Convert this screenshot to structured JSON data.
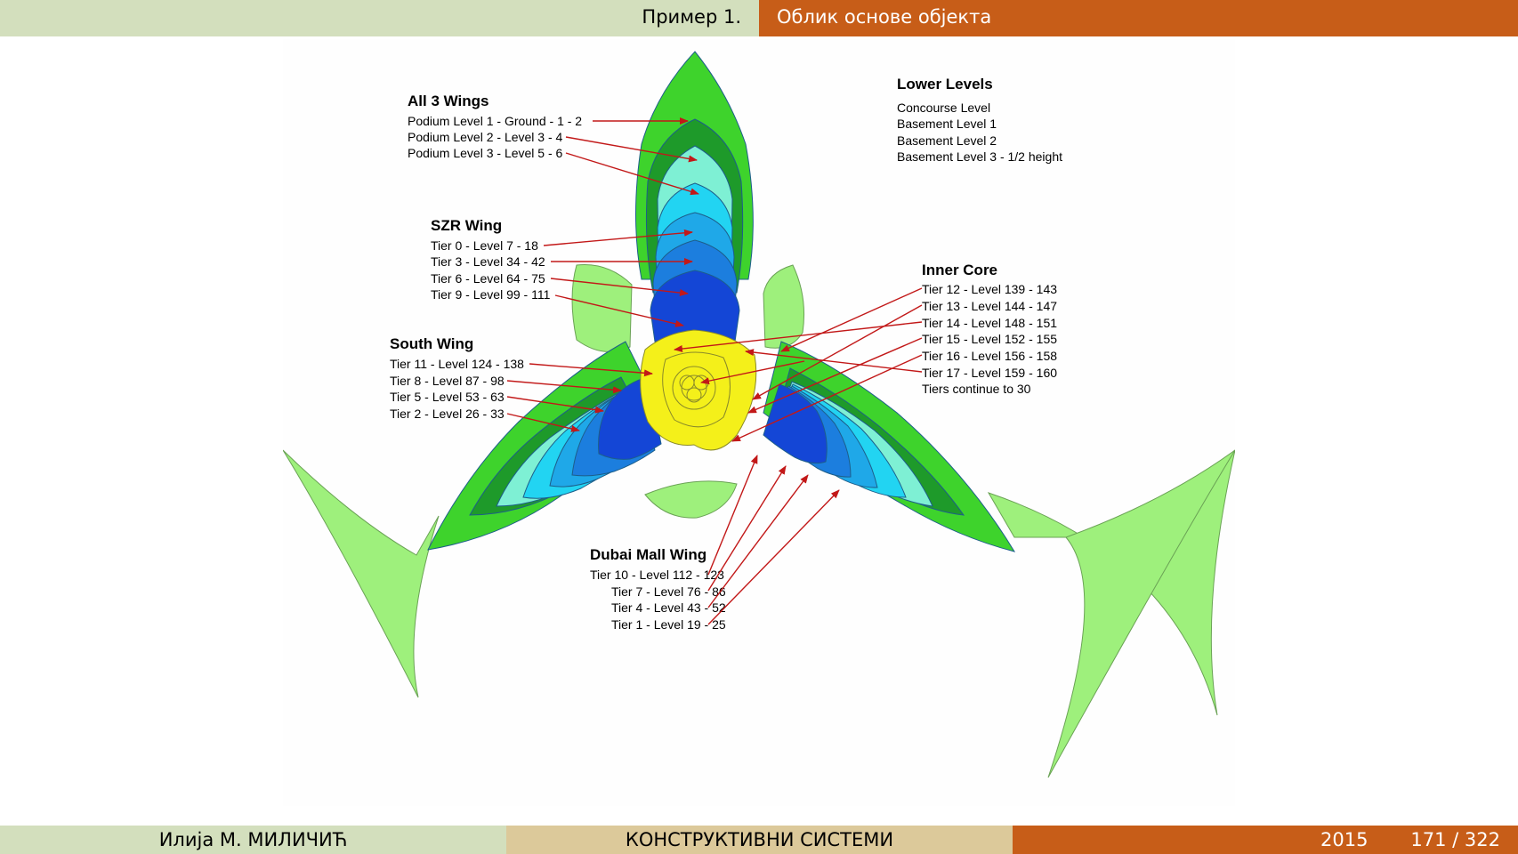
{
  "header": {
    "section": "Пример 1.",
    "subsection": "Облик основе објекта"
  },
  "footer": {
    "author": "Илија М. МИЛИЧИЋ",
    "course": "КОНСТРУКТИВНИ СИСТЕМИ",
    "year": "2015",
    "page": "171 / 322"
  },
  "diagram": {
    "all_wings": {
      "title": "All 3 Wings",
      "items": [
        "Podium Level 1 - Ground - 1 - 2",
        "Podium Level 2 - Level 3 - 4",
        "Podium Level 3 - Level 5 - 6"
      ]
    },
    "szr_wing": {
      "title": "SZR Wing",
      "items": [
        "Tier 0 - Level 7 - 18",
        "Tier 3 - Level 34 - 42",
        "Tier 6 - Level 64 - 75",
        "Tier 9 - Level 99 - 111"
      ]
    },
    "south_wing": {
      "title": "South Wing",
      "items": [
        "Tier 11 - Level 124 - 138",
        "Tier 8 - Level 87 - 98",
        "Tier 5 - Level 53 - 63",
        "Tier 2 - Level 26 - 33"
      ]
    },
    "dubai_mall_wing": {
      "title": "Dubai Mall Wing",
      "items": [
        "Tier 10 - Level 112 - 123",
        "Tier 7 - Level 76 - 86",
        "Tier 4 - Level 43 - 52",
        "Tier 1 - Level 19 - 25"
      ]
    },
    "lower_levels": {
      "title": "Lower Levels",
      "items": [
        "Concourse Level",
        "Basement Level 1",
        "Basement Level 2",
        "Basement Level 3 - 1/2 height"
      ]
    },
    "inner_core": {
      "title": "Inner Core",
      "items": [
        "Tier 12 - Level 139 - 143",
        "Tier 13 - Level 144 - 147",
        "Tier 14 - Level 148 - 151",
        "Tier 15 - Level 152 - 155",
        "Tier 16 - Level 156 - 158",
        "Tier 17 - Level 159 - 160",
        "Tiers continue to 30"
      ]
    }
  },
  "colors": {
    "top_left_bar": "#d3dfbd",
    "accent_orange": "#c75d18",
    "footer_mid": "#dcc99a",
    "light_green": "#9ef07c",
    "green": "#3ed32c",
    "dark_green": "#1e9a2a",
    "aqua": "#7ef0d4",
    "cyan": "#22d4f2",
    "sky_blue": "#1fa8e8",
    "blue": "#1c7ede",
    "deep_blue": "#1446d6",
    "yellow": "#f4f01a",
    "arrow_red": "#c21818"
  }
}
